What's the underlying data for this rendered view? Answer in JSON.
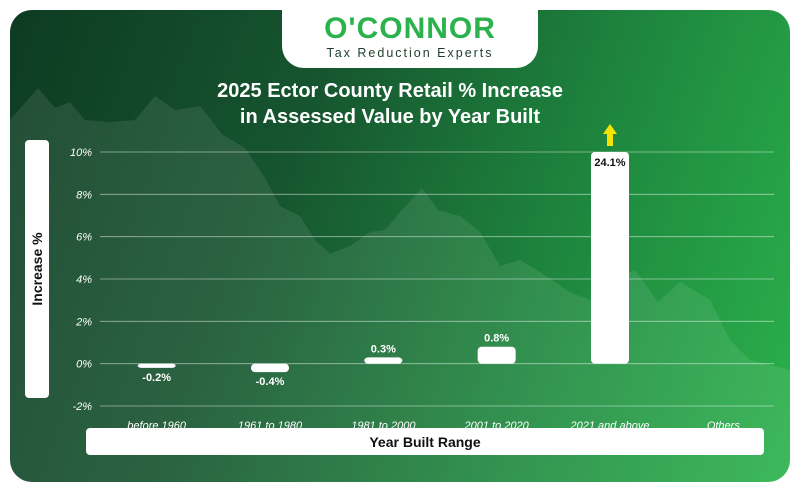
{
  "brand": {
    "name": "O'CONNOR",
    "tagline": "Tax Reduction Experts"
  },
  "colors": {
    "accent": "#2bb24c",
    "bar": "#ffffff",
    "arrow": "#f5e400",
    "background_dark": "#0d3b22"
  },
  "chart_data": {
    "type": "bar",
    "title": [
      "2025 Ector County Retail % Increase",
      "in Assessed Value by Year Built"
    ],
    "xlabel": "Year Built Range",
    "ylabel": "Increase %",
    "categories": [
      "before 1960",
      "1961 to 1980",
      "1981 to 2000",
      "2001 to 2020",
      "2021 and above",
      "Others"
    ],
    "values": [
      -0.2,
      -0.4,
      0.3,
      0.8,
      24.1,
      null
    ],
    "data_labels": [
      "-0.2%",
      "-0.4%",
      "0.3%",
      "0.8%",
      "24.1%",
      ""
    ],
    "ylim": [
      -2,
      10
    ],
    "yticks": [
      -2,
      0,
      2,
      4,
      6,
      8,
      10
    ],
    "ytick_labels": [
      "-2%",
      "0%",
      "2%",
      "4%",
      "6%",
      "8%",
      "10%"
    ],
    "axis_break_arrow_on": "2021 and above",
    "grid": true,
    "legend": "none"
  }
}
